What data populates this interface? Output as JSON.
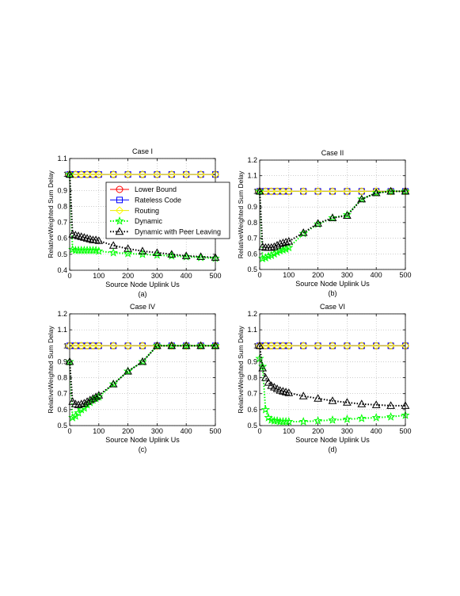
{
  "colors": {
    "lower_bound": "#ff0000",
    "rateless": "#0000ff",
    "routing": "#ffff00",
    "dynamic": "#00ff00",
    "peer_leaving": "#000000",
    "grid": "#b0b0b0"
  },
  "legend": {
    "entries": [
      "Lower Bound",
      "Rateless Code",
      "Routing",
      "Dynamic",
      "Dynamic with Peer Leaving"
    ],
    "placement": "inside panel (a), upper-right"
  },
  "chart_data": [
    {
      "type": "line",
      "title": "Case I",
      "caption": "(a)",
      "xlabel": "Source Node Uplink Us",
      "ylabel": "RelativeWeighted Sum Delay",
      "xlim": [
        0,
        500
      ],
      "ylim": [
        0.4,
        1.1
      ],
      "xticks": [
        "0",
        "100",
        "200",
        "300",
        "400",
        "500"
      ],
      "yticks": [
        "0.4",
        "0.5",
        "0.6",
        "0.7",
        "0.8",
        "0.9",
        "1",
        "1.1"
      ],
      "grid": true,
      "series": [
        {
          "name": "Lower Bound",
          "x": [
            0,
            20,
            40,
            60,
            80,
            100,
            150,
            200,
            250,
            300,
            350,
            400,
            450,
            500
          ],
          "y": [
            1,
            1,
            1,
            1,
            1,
            1,
            1,
            1,
            1,
            1,
            1,
            1,
            1,
            1
          ]
        },
        {
          "name": "Rateless Code",
          "x": [
            0,
            20,
            40,
            60,
            80,
            100,
            150,
            200,
            250,
            300,
            350,
            400,
            450,
            500
          ],
          "y": [
            1,
            1,
            1,
            1,
            1,
            1,
            1,
            1,
            1,
            1,
            1,
            1,
            1,
            1
          ]
        },
        {
          "name": "Routing",
          "x": [
            0,
            20,
            40,
            60,
            80,
            100,
            150,
            200,
            250,
            300,
            350,
            400,
            450,
            500
          ],
          "y": [
            1,
            1,
            1,
            1,
            1,
            1,
            1,
            1,
            1,
            1,
            1,
            1,
            1,
            1
          ]
        },
        {
          "name": "Dynamic",
          "x": [
            0,
            10,
            20,
            30,
            40,
            50,
            60,
            70,
            80,
            90,
            100,
            150,
            200,
            250,
            300,
            350,
            400,
            450,
            500
          ],
          "y": [
            1.0,
            0.53,
            0.525,
            0.525,
            0.525,
            0.525,
            0.525,
            0.525,
            0.525,
            0.525,
            0.52,
            0.51,
            0.505,
            0.5,
            0.495,
            0.49,
            0.485,
            0.48,
            0.475
          ]
        },
        {
          "name": "Dynamic with Peer Leaving",
          "x": [
            0,
            10,
            20,
            30,
            40,
            50,
            60,
            70,
            80,
            90,
            100,
            150,
            200,
            250,
            300,
            350,
            400,
            450,
            500
          ],
          "y": [
            1.0,
            0.625,
            0.62,
            0.615,
            0.61,
            0.605,
            0.6,
            0.595,
            0.59,
            0.59,
            0.585,
            0.555,
            0.535,
            0.52,
            0.51,
            0.5,
            0.49,
            0.485,
            0.48
          ]
        }
      ]
    },
    {
      "type": "line",
      "title": "Case II",
      "caption": "(b)",
      "xlabel": "Source Node Uplink Us",
      "ylabel": "RelativeWeighted Sum Delay",
      "xlim": [
        0,
        500
      ],
      "ylim": [
        0.5,
        1.2
      ],
      "xticks": [
        "0",
        "100",
        "200",
        "300",
        "400",
        "500"
      ],
      "yticks": [
        "0.5",
        "0.6",
        "0.7",
        "0.8",
        "0.9",
        "1",
        "1.1",
        "1.2"
      ],
      "grid": true,
      "series": [
        {
          "name": "Lower Bound",
          "x": [
            0,
            20,
            40,
            60,
            80,
            100,
            150,
            200,
            250,
            300,
            350,
            400,
            450,
            500
          ],
          "y": [
            1,
            1,
            1,
            1,
            1,
            1,
            1,
            1,
            1,
            1,
            1,
            1,
            1,
            1
          ]
        },
        {
          "name": "Rateless Code",
          "x": [
            0,
            20,
            40,
            60,
            80,
            100,
            150,
            200,
            250,
            300,
            350,
            400,
            450,
            500
          ],
          "y": [
            1,
            1,
            1,
            1,
            1,
            1,
            1,
            1,
            1,
            1,
            1,
            1,
            1,
            1
          ]
        },
        {
          "name": "Routing",
          "x": [
            0,
            20,
            40,
            60,
            80,
            100,
            150,
            200,
            250,
            300,
            350,
            400,
            450,
            500
          ],
          "y": [
            1,
            1,
            1,
            1,
            1,
            1,
            1,
            1,
            1,
            1,
            1,
            1,
            1,
            1
          ]
        },
        {
          "name": "Dynamic",
          "x": [
            0,
            10,
            20,
            30,
            40,
            50,
            60,
            70,
            80,
            90,
            100,
            150,
            200,
            250,
            300,
            350,
            400,
            450,
            500
          ],
          "y": [
            1.0,
            0.57,
            0.575,
            0.585,
            0.59,
            0.6,
            0.61,
            0.62,
            0.625,
            0.63,
            0.64,
            0.73,
            0.79,
            0.83,
            0.85,
            0.95,
            0.99,
            1.0,
            1.0
          ]
        },
        {
          "name": "Dynamic with Peer Leaving",
          "x": [
            0,
            10,
            20,
            30,
            40,
            50,
            60,
            70,
            80,
            90,
            100,
            150,
            200,
            250,
            300,
            350,
            400,
            450,
            500
          ],
          "y": [
            1.0,
            0.645,
            0.64,
            0.64,
            0.64,
            0.645,
            0.655,
            0.665,
            0.67,
            0.675,
            0.68,
            0.735,
            0.795,
            0.83,
            0.845,
            0.95,
            0.99,
            1.0,
            1.0
          ]
        }
      ]
    },
    {
      "type": "line",
      "title": "Case IV",
      "caption": "(c)",
      "xlabel": "Source Node Uplink Us",
      "ylabel": "RelativeWeighted Sum Delay",
      "xlim": [
        0,
        500
      ],
      "ylim": [
        0.5,
        1.2
      ],
      "xticks": [
        "0",
        "100",
        "200",
        "300",
        "400",
        "500"
      ],
      "yticks": [
        "0.5",
        "0.6",
        "0.7",
        "0.8",
        "0.9",
        "1",
        "1.1",
        "1.2"
      ],
      "grid": true,
      "series": [
        {
          "name": "Lower Bound",
          "x": [
            0,
            20,
            40,
            60,
            80,
            100,
            150,
            200,
            250,
            300,
            350,
            400,
            450,
            500
          ],
          "y": [
            1,
            1,
            1,
            1,
            1,
            1,
            1,
            1,
            1,
            1,
            1,
            1,
            1,
            1
          ]
        },
        {
          "name": "Rateless Code",
          "x": [
            0,
            20,
            40,
            60,
            80,
            100,
            150,
            200,
            250,
            300,
            350,
            400,
            450,
            500
          ],
          "y": [
            1,
            1,
            1,
            1,
            1,
            1,
            1,
            1,
            1,
            1,
            1,
            1,
            1,
            1
          ]
        },
        {
          "name": "Routing",
          "x": [
            0,
            20,
            40,
            60,
            80,
            100,
            150,
            200,
            250,
            300,
            350,
            400,
            450,
            500
          ],
          "y": [
            1,
            1,
            1,
            1,
            1,
            1,
            1,
            1,
            1,
            1,
            1,
            1,
            1,
            1
          ]
        },
        {
          "name": "Dynamic",
          "x": [
            0,
            10,
            20,
            30,
            40,
            50,
            60,
            70,
            80,
            90,
            100,
            150,
            200,
            250,
            300,
            350,
            400,
            450,
            500
          ],
          "y": [
            0.9,
            0.55,
            0.56,
            0.58,
            0.6,
            0.61,
            0.63,
            0.645,
            0.66,
            0.67,
            0.68,
            0.76,
            0.84,
            0.9,
            1.0,
            1.0,
            1.0,
            1.0,
            1.0
          ]
        },
        {
          "name": "Dynamic with Peer Leaving",
          "x": [
            0,
            10,
            20,
            30,
            40,
            50,
            60,
            70,
            80,
            90,
            100,
            150,
            200,
            250,
            300,
            350,
            400,
            450,
            500
          ],
          "y": [
            0.9,
            0.65,
            0.635,
            0.63,
            0.635,
            0.64,
            0.65,
            0.66,
            0.67,
            0.68,
            0.69,
            0.76,
            0.84,
            0.9,
            1.0,
            1.0,
            1.0,
            1.0,
            1.0
          ]
        }
      ]
    },
    {
      "type": "line",
      "title": "Case VI",
      "caption": "(d)",
      "xlabel": "Source Node Uplink Us",
      "ylabel": "RelativeWeighted Sum Delay",
      "xlim": [
        0,
        500
      ],
      "ylim": [
        0.5,
        1.2
      ],
      "xticks": [
        "0",
        "100",
        "200",
        "300",
        "400",
        "500"
      ],
      "yticks": [
        "0.5",
        "0.6",
        "0.7",
        "0.8",
        "0.9",
        "1",
        "1.1",
        "1.2"
      ],
      "grid": true,
      "series": [
        {
          "name": "Lower Bound",
          "x": [
            0,
            20,
            40,
            60,
            80,
            100,
            150,
            200,
            250,
            300,
            350,
            400,
            450,
            500
          ],
          "y": [
            1,
            1,
            1,
            1,
            1,
            1,
            1,
            1,
            1,
            1,
            1,
            1,
            1,
            1
          ]
        },
        {
          "name": "Rateless Code",
          "x": [
            0,
            20,
            40,
            60,
            80,
            100,
            150,
            200,
            250,
            300,
            350,
            400,
            450,
            500
          ],
          "y": [
            1,
            1,
            1,
            1,
            1,
            1,
            1,
            1,
            1,
            1,
            1,
            1,
            1,
            1
          ]
        },
        {
          "name": "Routing",
          "x": [
            0,
            20,
            40,
            60,
            80,
            100,
            150,
            200,
            250,
            300,
            350,
            400,
            450,
            500
          ],
          "y": [
            1,
            1,
            1,
            1,
            1,
            1,
            1,
            1,
            1,
            1,
            1,
            1,
            1,
            1
          ]
        },
        {
          "name": "Dynamic",
          "x": [
            0,
            10,
            20,
            30,
            40,
            50,
            60,
            70,
            80,
            90,
            100,
            150,
            200,
            250,
            300,
            350,
            400,
            450,
            500
          ],
          "y": [
            0.92,
            0.87,
            0.6,
            0.55,
            0.535,
            0.53,
            0.53,
            0.525,
            0.525,
            0.525,
            0.525,
            0.525,
            0.53,
            0.535,
            0.54,
            0.545,
            0.55,
            0.555,
            0.565
          ]
        },
        {
          "name": "Dynamic with Peer Leaving",
          "x": [
            0,
            10,
            20,
            30,
            40,
            50,
            60,
            70,
            80,
            90,
            100,
            150,
            200,
            250,
            300,
            350,
            400,
            450,
            500
          ],
          "y": [
            1.0,
            0.86,
            0.8,
            0.77,
            0.75,
            0.74,
            0.73,
            0.72,
            0.715,
            0.71,
            0.705,
            0.685,
            0.67,
            0.655,
            0.645,
            0.635,
            0.63,
            0.625,
            0.625
          ]
        }
      ]
    }
  ]
}
